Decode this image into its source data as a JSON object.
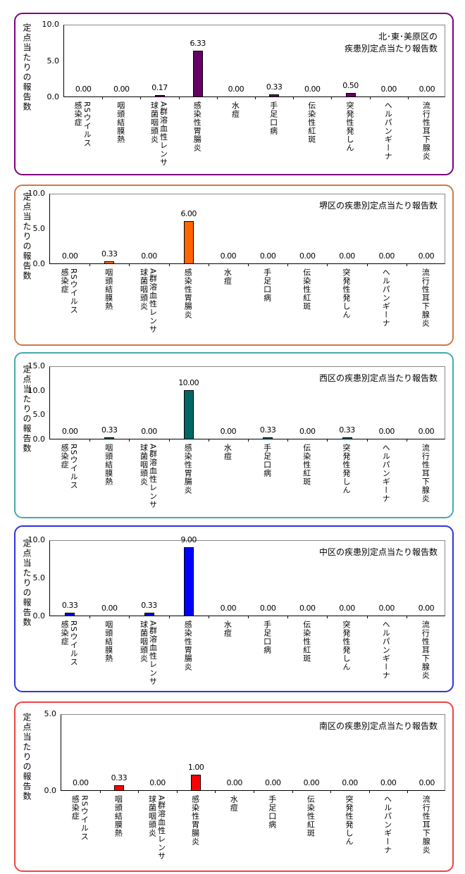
{
  "chart_data": [
    {
      "type": "bar",
      "title": "北･東･美原区の\n疾患別定点当たり報告数",
      "ylabel": "定点当たりの報告数",
      "ylim": [
        0,
        10
      ],
      "yticks": [
        "10.0",
        "5.0",
        "0.0"
      ],
      "grid": false,
      "bar_color": "#660066",
      "border_color": "#800080",
      "categories": [
        [
          "RSウイルス",
          "感染症"
        ],
        [
          "咽頭結膜熱"
        ],
        [
          "A群溶血性レンサ",
          "球菌咽頭炎"
        ],
        [
          "感染性胃腸炎"
        ],
        [
          "水痘"
        ],
        [
          "手足口病"
        ],
        [
          "伝染性紅斑"
        ],
        [
          "突発性発しん"
        ],
        [
          "ヘルパンギーナ"
        ],
        [
          "流行性耳下腺炎"
        ]
      ],
      "values": [
        0,
        0,
        0.17,
        6.33,
        0,
        0.33,
        0,
        0.5,
        0,
        0
      ],
      "labels": [
        "0.00",
        "0.00",
        "0.17",
        "6.33",
        "0.00",
        "0.33",
        "0.00",
        "0.50",
        "0.00",
        "0.00"
      ]
    },
    {
      "type": "bar",
      "title": "堺区の疾患別定点当たり報告数",
      "ylabel": "定点当たりの報告数",
      "ylim": [
        0,
        10
      ],
      "yticks": [
        "10.0",
        "5.0",
        "0.0"
      ],
      "grid": false,
      "bar_color": "#ff6600",
      "border_color": "#cc7a4a",
      "categories": [
        [
          "RSウイルス",
          "感染症"
        ],
        [
          "咽頭結膜熱"
        ],
        [
          "A群溶血性レンサ",
          "球菌咽頭炎"
        ],
        [
          "感染性胃腸炎"
        ],
        [
          "水痘"
        ],
        [
          "手足口病"
        ],
        [
          "伝染性紅斑"
        ],
        [
          "突発性発しん"
        ],
        [
          "ヘルパンギーナ"
        ],
        [
          "流行性耳下腺炎"
        ]
      ],
      "values": [
        0,
        0.33,
        0,
        6,
        0,
        0,
        0,
        0,
        0,
        0
      ],
      "labels": [
        "0.00",
        "0.33",
        "0.00",
        "6.00",
        "0.00",
        "0.00",
        "0.00",
        "0.00",
        "0.00",
        "0.00"
      ]
    },
    {
      "type": "bar",
      "title": "西区の疾患別定点当たり報告数",
      "ylabel": "定点当たりの報告数",
      "ylim": [
        0,
        15
      ],
      "yticks": [
        "15.0",
        "10.0",
        "5.0",
        "0.0"
      ],
      "grid": false,
      "bar_color": "#006666",
      "border_color": "#44aaaa",
      "categories": [
        [
          "RSウイルス",
          "感染症"
        ],
        [
          "咽頭結膜熱"
        ],
        [
          "A群溶血性レンサ",
          "球菌咽頭炎"
        ],
        [
          "感染性胃腸炎"
        ],
        [
          "水痘"
        ],
        [
          "手足口病"
        ],
        [
          "伝染性紅斑"
        ],
        [
          "突発性発しん"
        ],
        [
          "ヘルパンギーナ"
        ],
        [
          "流行性耳下腺炎"
        ]
      ],
      "values": [
        0,
        0.33,
        0,
        10,
        0,
        0.33,
        0,
        0.33,
        0,
        0
      ],
      "labels": [
        "0.00",
        "0.33",
        "0.00",
        "10.00",
        "0.00",
        "0.33",
        "0.00",
        "0.33",
        "0.00",
        "0.00"
      ]
    },
    {
      "type": "bar",
      "title": "中区の疾患別定点当たり報告数",
      "ylabel": "定点当たりの報告数",
      "ylim": [
        0,
        10
      ],
      "yticks": [
        "10.0",
        "5.0",
        "0.0"
      ],
      "grid": false,
      "bar_color": "#0000ff",
      "border_color": "#3333dd",
      "categories": [
        [
          "RSウイルス",
          "感染症"
        ],
        [
          "咽頭結膜熱"
        ],
        [
          "A群溶血性レンサ",
          "球菌咽頭炎"
        ],
        [
          "感染性胃腸炎"
        ],
        [
          "水痘"
        ],
        [
          "手足口病"
        ],
        [
          "伝染性紅斑"
        ],
        [
          "突発性発しん"
        ],
        [
          "ヘルパンギーナ"
        ],
        [
          "流行性耳下腺炎"
        ]
      ],
      "values": [
        0.33,
        0,
        0.33,
        9,
        0,
        0,
        0,
        0,
        0,
        0
      ],
      "labels": [
        "0.33",
        "0.00",
        "0.33",
        "9.00",
        "0.00",
        "0.00",
        "0.00",
        "0.00",
        "0.00",
        "0.00"
      ]
    },
    {
      "type": "bar",
      "title": "南区の疾患別定点当たり報告数",
      "ylabel": "定点当たりの報告数",
      "ylim": [
        0,
        5
      ],
      "yticks": [
        "5.0",
        "0.0"
      ],
      "grid": false,
      "bar_color": "#ff0000",
      "border_color": "#ee4444",
      "categories": [
        [
          "RSウイルス",
          "感染症"
        ],
        [
          "咽頭結膜熱"
        ],
        [
          "A群溶血性レンサ",
          "球菌咽頭炎"
        ],
        [
          "感染性胃腸炎"
        ],
        [
          "水痘"
        ],
        [
          "手足口病"
        ],
        [
          "伝染性紅斑"
        ],
        [
          "突発性発しん"
        ],
        [
          "ヘルパンギーナ"
        ],
        [
          "流行性耳下腺炎"
        ]
      ],
      "values": [
        0,
        0.33,
        0,
        1,
        0,
        0,
        0,
        0,
        0,
        0
      ],
      "labels": [
        "0.00",
        "0.33",
        "0.00",
        "1.00",
        "0.00",
        "0.00",
        "0.00",
        "0.00",
        "0.00",
        "0.00"
      ]
    }
  ]
}
